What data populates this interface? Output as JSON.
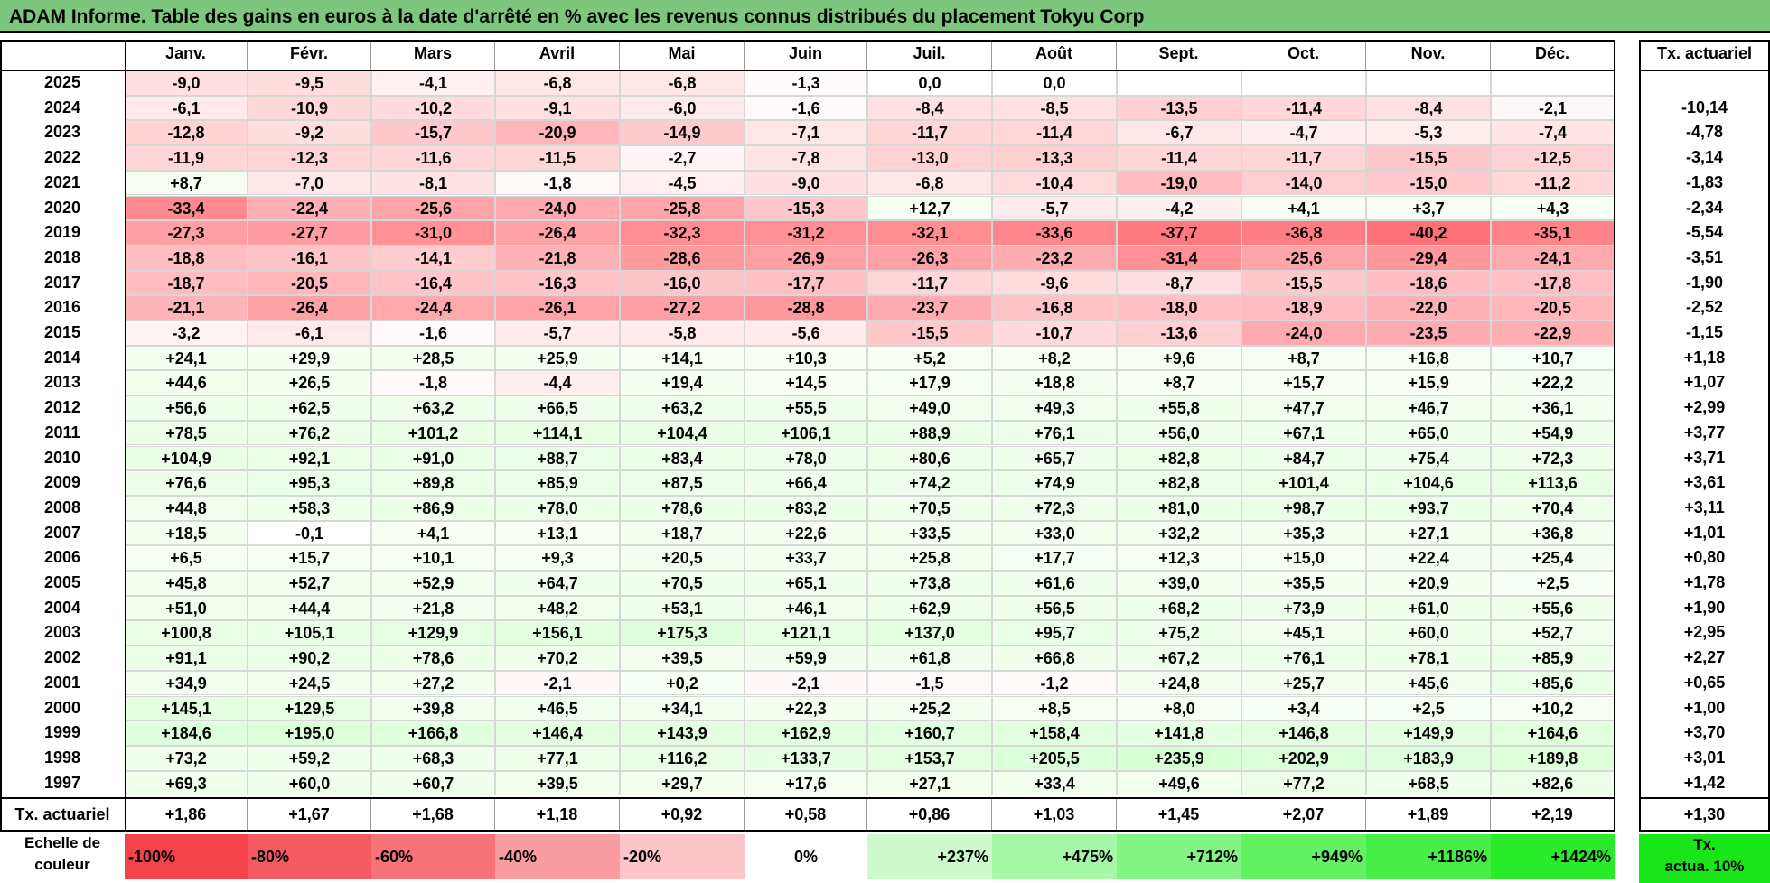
{
  "title": "ADAM Informe. Table des gains en euros à la date d'arrêté en % avec les revenus connus distribués du placement Tokyu Corp",
  "months": [
    "Janv.",
    "Févr.",
    "Mars",
    "Avril",
    "Mai",
    "Juin",
    "Juil.",
    "Août",
    "Sept.",
    "Oct.",
    "Nov.",
    "Déc."
  ],
  "tx_header": "Tx. actuariel",
  "rows": [
    {
      "year": "2025",
      "cells": [
        "-9,0",
        "-9,5",
        "-4,1",
        "-6,8",
        "-6,8",
        "-1,3",
        "0,0",
        "0,0",
        "",
        "",
        "",
        ""
      ],
      "tx": ""
    },
    {
      "year": "2024",
      "cells": [
        "-6,1",
        "-10,9",
        "-10,2",
        "-9,1",
        "-6,0",
        "-1,6",
        "-8,4",
        "-8,5",
        "-13,5",
        "-11,4",
        "-8,4",
        "-2,1"
      ],
      "tx": "-10,14"
    },
    {
      "year": "2023",
      "cells": [
        "-12,8",
        "-9,2",
        "-15,7",
        "-20,9",
        "-14,9",
        "-7,1",
        "-11,7",
        "-11,4",
        "-6,7",
        "-4,7",
        "-5,3",
        "-7,4"
      ],
      "tx": "-4,78"
    },
    {
      "year": "2022",
      "cells": [
        "-11,9",
        "-12,3",
        "-11,6",
        "-11,5",
        "-2,7",
        "-7,8",
        "-13,0",
        "-13,3",
        "-11,4",
        "-11,7",
        "-15,5",
        "-12,5"
      ],
      "tx": "-3,14"
    },
    {
      "year": "2021",
      "cells": [
        "+8,7",
        "-7,0",
        "-8,1",
        "-1,8",
        "-4,5",
        "-9,0",
        "-6,8",
        "-10,4",
        "-19,0",
        "-14,0",
        "-15,0",
        "-11,2"
      ],
      "tx": "-1,83"
    },
    {
      "year": "2020",
      "cells": [
        "-33,4",
        "-22,4",
        "-25,6",
        "-24,0",
        "-25,8",
        "-15,3",
        "+12,7",
        "-5,7",
        "-4,2",
        "+4,1",
        "+3,7",
        "+4,3"
      ],
      "tx": "-2,34"
    },
    {
      "year": "2019",
      "cells": [
        "-27,3",
        "-27,7",
        "-31,0",
        "-26,4",
        "-32,3",
        "-31,2",
        "-32,1",
        "-33,6",
        "-37,7",
        "-36,8",
        "-40,2",
        "-35,1"
      ],
      "tx": "-5,54"
    },
    {
      "year": "2018",
      "cells": [
        "-18,8",
        "-16,1",
        "-14,1",
        "-21,8",
        "-28,6",
        "-26,9",
        "-26,3",
        "-23,2",
        "-31,4",
        "-25,6",
        "-29,4",
        "-24,1"
      ],
      "tx": "-3,51"
    },
    {
      "year": "2017",
      "cells": [
        "-18,7",
        "-20,5",
        "-16,4",
        "-16,3",
        "-16,0",
        "-17,7",
        "-11,7",
        "-9,6",
        "-8,7",
        "-15,5",
        "-18,6",
        "-17,8"
      ],
      "tx": "-1,90"
    },
    {
      "year": "2016",
      "cells": [
        "-21,1",
        "-26,4",
        "-24,4",
        "-26,1",
        "-27,2",
        "-28,8",
        "-23,7",
        "-16,8",
        "-18,0",
        "-18,9",
        "-22,0",
        "-20,5"
      ],
      "tx": "-2,52"
    },
    {
      "year": "2015",
      "cells": [
        "-3,2",
        "-6,1",
        "-1,6",
        "-5,7",
        "-5,8",
        "-5,6",
        "-15,5",
        "-10,7",
        "-13,6",
        "-24,0",
        "-23,5",
        "-22,9"
      ],
      "tx": "-1,15"
    },
    {
      "year": "2014",
      "cells": [
        "+24,1",
        "+29,9",
        "+28,5",
        "+25,9",
        "+14,1",
        "+10,3",
        "+5,2",
        "+8,2",
        "+9,6",
        "+8,7",
        "+16,8",
        "+10,7"
      ],
      "tx": "+1,18"
    },
    {
      "year": "2013",
      "cells": [
        "+44,6",
        "+26,5",
        "-1,8",
        "-4,4",
        "+19,4",
        "+14,5",
        "+17,9",
        "+18,8",
        "+8,7",
        "+15,7",
        "+15,9",
        "+22,2"
      ],
      "tx": "+1,07"
    },
    {
      "year": "2012",
      "cells": [
        "+56,6",
        "+62,5",
        "+63,2",
        "+66,5",
        "+63,2",
        "+55,5",
        "+49,0",
        "+49,3",
        "+55,8",
        "+47,7",
        "+46,7",
        "+36,1"
      ],
      "tx": "+2,99"
    },
    {
      "year": "2011",
      "cells": [
        "+78,5",
        "+76,2",
        "+101,2",
        "+114,1",
        "+104,4",
        "+106,1",
        "+88,9",
        "+76,1",
        "+56,0",
        "+67,1",
        "+65,0",
        "+54,9"
      ],
      "tx": "+3,77"
    },
    {
      "year": "2010",
      "cells": [
        "+104,9",
        "+92,1",
        "+91,0",
        "+88,7",
        "+83,4",
        "+78,0",
        "+80,6",
        "+65,7",
        "+82,8",
        "+84,7",
        "+75,4",
        "+72,3"
      ],
      "tx": "+3,71"
    },
    {
      "year": "2009",
      "cells": [
        "+76,6",
        "+95,3",
        "+89,8",
        "+85,9",
        "+87,5",
        "+66,4",
        "+74,2",
        "+74,9",
        "+82,8",
        "+101,4",
        "+104,6",
        "+113,6"
      ],
      "tx": "+3,61"
    },
    {
      "year": "2008",
      "cells": [
        "+44,8",
        "+58,3",
        "+86,9",
        "+78,0",
        "+78,6",
        "+83,2",
        "+70,5",
        "+72,3",
        "+81,0",
        "+98,7",
        "+93,7",
        "+70,4"
      ],
      "tx": "+3,11"
    },
    {
      "year": "2007",
      "cells": [
        "+18,5",
        "-0,1",
        "+4,1",
        "+13,1",
        "+18,7",
        "+22,6",
        "+33,5",
        "+33,0",
        "+32,2",
        "+35,3",
        "+27,1",
        "+36,8"
      ],
      "tx": "+1,01"
    },
    {
      "year": "2006",
      "cells": [
        "+6,5",
        "+15,7",
        "+10,1",
        "+9,3",
        "+20,5",
        "+33,7",
        "+25,8",
        "+17,7",
        "+12,3",
        "+15,0",
        "+22,4",
        "+25,4"
      ],
      "tx": "+0,80"
    },
    {
      "year": "2005",
      "cells": [
        "+45,8",
        "+52,7",
        "+52,9",
        "+64,7",
        "+70,5",
        "+65,1",
        "+73,8",
        "+61,6",
        "+39,0",
        "+35,5",
        "+20,9",
        "+2,5"
      ],
      "tx": "+1,78"
    },
    {
      "year": "2004",
      "cells": [
        "+51,0",
        "+44,4",
        "+21,8",
        "+48,2",
        "+53,1",
        "+46,1",
        "+62,9",
        "+56,5",
        "+68,2",
        "+73,9",
        "+61,0",
        "+55,6"
      ],
      "tx": "+1,90"
    },
    {
      "year": "2003",
      "cells": [
        "+100,8",
        "+105,1",
        "+129,9",
        "+156,1",
        "+175,3",
        "+121,1",
        "+137,0",
        "+95,7",
        "+75,2",
        "+45,1",
        "+60,0",
        "+52,7"
      ],
      "tx": "+2,95"
    },
    {
      "year": "2002",
      "cells": [
        "+91,1",
        "+90,2",
        "+78,6",
        "+70,2",
        "+39,5",
        "+59,9",
        "+61,8",
        "+66,8",
        "+67,2",
        "+76,1",
        "+78,1",
        "+85,9"
      ],
      "tx": "+2,27"
    },
    {
      "year": "2001",
      "cells": [
        "+34,9",
        "+24,5",
        "+27,2",
        "-2,1",
        "+0,2",
        "-2,1",
        "-1,5",
        "-1,2",
        "+24,8",
        "+25,7",
        "+45,6",
        "+85,6"
      ],
      "tx": "+0,65"
    },
    {
      "year": "2000",
      "cells": [
        "+145,1",
        "+129,5",
        "+39,8",
        "+46,5",
        "+34,1",
        "+22,3",
        "+25,2",
        "+8,5",
        "+8,0",
        "+3,4",
        "+2,5",
        "+10,2"
      ],
      "tx": "+1,00"
    },
    {
      "year": "1999",
      "cells": [
        "+184,6",
        "+195,0",
        "+166,8",
        "+146,4",
        "+143,9",
        "+162,9",
        "+160,7",
        "+158,4",
        "+141,8",
        "+146,8",
        "+149,9",
        "+164,6"
      ],
      "tx": "+3,70"
    },
    {
      "year": "1998",
      "cells": [
        "+73,2",
        "+59,2",
        "+68,3",
        "+77,1",
        "+116,2",
        "+133,7",
        "+153,7",
        "+205,5",
        "+235,9",
        "+202,9",
        "+183,9",
        "+189,8"
      ],
      "tx": "+3,01"
    },
    {
      "year": "1997",
      "cells": [
        "+69,3",
        "+60,0",
        "+60,7",
        "+39,5",
        "+29,7",
        "+17,6",
        "+27,1",
        "+33,4",
        "+49,6",
        "+77,2",
        "+68,5",
        "+82,6"
      ],
      "tx": "+1,42"
    }
  ],
  "footer": {
    "label": "Tx. actuariel",
    "cells": [
      "+1,86",
      "+1,67",
      "+1,68",
      "+1,18",
      "+0,92",
      "+0,58",
      "+0,86",
      "+1,03",
      "+1,45",
      "+2,07",
      "+1,89",
      "+2,19"
    ],
    "tx": "+1,30"
  },
  "scale": {
    "label_line1": "Echelle de",
    "label_line2": "couleur",
    "items": [
      {
        "text": "-100%",
        "color": "#f2424b",
        "align": "left"
      },
      {
        "text": "-80%",
        "color": "#f45a61",
        "align": "left"
      },
      {
        "text": "-60%",
        "color": "#f67379",
        "align": "left"
      },
      {
        "text": "-40%",
        "color": "#f99da1",
        "align": "left"
      },
      {
        "text": "-20%",
        "color": "#fcc5c7",
        "align": "left"
      },
      {
        "text": "0%",
        "color": "#ffffff",
        "align": "center"
      },
      {
        "text": "+237%",
        "color": "#cdf9cd",
        "align": "right"
      },
      {
        "text": "+475%",
        "color": "#a6f7a6",
        "align": "right"
      },
      {
        "text": "+712%",
        "color": "#84f584",
        "align": "right"
      },
      {
        "text": "+949%",
        "color": "#63f263",
        "align": "right"
      },
      {
        "text": "+1186%",
        "color": "#47ee47",
        "align": "right"
      },
      {
        "text": "+1424%",
        "color": "#2aeb2a",
        "align": "right"
      }
    ],
    "tx_line1": "Tx.",
    "tx_line2": "actua. 10%",
    "tx_color": "#19e619"
  }
}
